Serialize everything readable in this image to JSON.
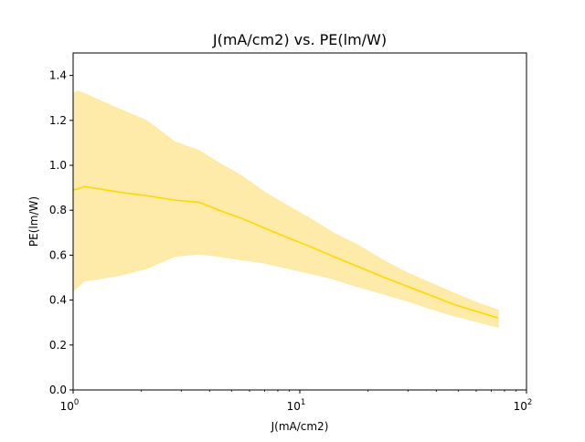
{
  "chart_data": {
    "type": "line",
    "title": "J(mA/cm2) vs. PE(lm/W)",
    "xlabel": "J(mA/cm2)",
    "ylabel": "PE(lm/W)",
    "xscale": "log",
    "xlim": [
      1,
      100
    ],
    "ylim": [
      0,
      1.5
    ],
    "x_ticks": [
      {
        "base": "10",
        "exp": "0",
        "value": 1
      },
      {
        "base": "10",
        "exp": "1",
        "value": 10
      },
      {
        "base": "10",
        "exp": "2",
        "value": 100
      }
    ],
    "y_ticks": [
      "0.0",
      "0.2",
      "0.4",
      "0.6",
      "0.8",
      "1.0",
      "1.2",
      "1.4"
    ],
    "grid": false,
    "legend": "none",
    "colors": {
      "line": "#ffd700",
      "band": "#ffe89a"
    },
    "series": [
      {
        "x": [
          1.0,
          1.05,
          1.12,
          1.3,
          1.6,
          2.1,
          2.8,
          3.6,
          4.4,
          5.5,
          7.0,
          9.0,
          11.0,
          14.0,
          18.0,
          23.0,
          30.0,
          38.0,
          48.0,
          60.0,
          75.0
        ],
        "y": [
          0.89,
          0.895,
          0.905,
          0.895,
          0.88,
          0.865,
          0.845,
          0.835,
          0.8,
          0.765,
          0.72,
          0.675,
          0.64,
          0.595,
          0.55,
          0.505,
          0.46,
          0.42,
          0.38,
          0.35,
          0.32
        ],
        "y_lower": [
          0.44,
          0.46,
          0.485,
          0.495,
          0.51,
          0.54,
          0.595,
          0.605,
          0.595,
          0.58,
          0.565,
          0.54,
          0.52,
          0.495,
          0.46,
          0.43,
          0.395,
          0.36,
          0.33,
          0.305,
          0.28
        ],
        "y_upper": [
          1.32,
          1.33,
          1.32,
          1.29,
          1.25,
          1.2,
          1.105,
          1.065,
          1.01,
          0.955,
          0.88,
          0.815,
          0.765,
          0.7,
          0.645,
          0.58,
          0.52,
          0.475,
          0.43,
          0.39,
          0.355
        ]
      }
    ]
  }
}
